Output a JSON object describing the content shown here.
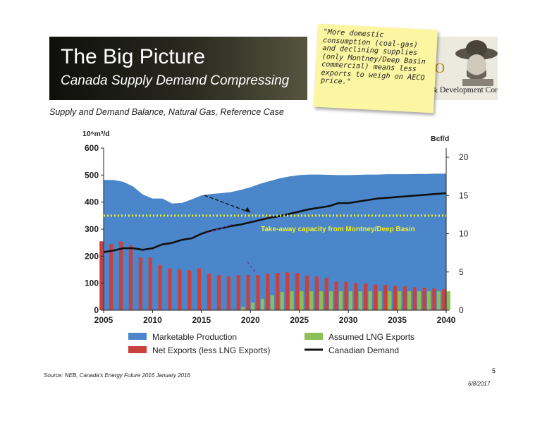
{
  "header": {
    "title": "The Big Picture",
    "subtitle": "Canada Supply Demand Compressing"
  },
  "logo": {
    "mark": "IO",
    "text": "& Development Corp."
  },
  "sticky_note": {
    "text": "\"More domestic consumption (coal-gas) and declining supplies (only Montney/Deep Basin commercial) means less exports to weigh on AECO price.\""
  },
  "footer": {
    "source": "Source: NEB, Canada's Energy Future 2016 January 2016",
    "page_number": "5",
    "date": "6/8/2017"
  },
  "colors": {
    "production": "#4a86c9",
    "net_exports": "#c9403f",
    "lng_exports": "#8cbf57",
    "demand": "#111111",
    "capacity_line": "#f1ef1c",
    "annotation": "#f5ef1c"
  },
  "chart_data": {
    "type": "area",
    "title": "Supply and Demand Balance, Natural Gas, Reference Case",
    "y_left_label": "10⁶m³/d",
    "y_right_label": "Bcf/d",
    "xlim": [
      2005,
      2040
    ],
    "ylim": [
      0,
      600
    ],
    "y2lim": [
      0,
      21.2
    ],
    "x_ticks": [
      2005,
      2010,
      2015,
      2020,
      2025,
      2030,
      2035,
      2040
    ],
    "y_ticks": [
      0,
      100,
      200,
      300,
      400,
      500,
      600
    ],
    "y2_ticks": [
      0,
      5,
      10,
      15,
      20
    ],
    "grid": false,
    "legend_position": "bottom",
    "years": [
      2005,
      2006,
      2007,
      2008,
      2009,
      2010,
      2011,
      2012,
      2013,
      2014,
      2015,
      2016,
      2017,
      2018,
      2019,
      2020,
      2021,
      2022,
      2023,
      2024,
      2025,
      2026,
      2027,
      2028,
      2029,
      2030,
      2031,
      2032,
      2033,
      2034,
      2035,
      2036,
      2037,
      2038,
      2039,
      2040
    ],
    "series": [
      {
        "name": "Marketable Production",
        "kind": "area",
        "values": [
          482,
          482,
          475,
          458,
          428,
          413,
          413,
          395,
          397,
          410,
          425,
          430,
          433,
          437,
          445,
          455,
          468,
          478,
          488,
          495,
          500,
          502,
          502,
          501,
          500,
          500,
          501,
          502,
          502,
          503,
          503,
          503,
          504,
          504,
          505,
          505
        ]
      },
      {
        "name": "Net Exports (less LNG Exports)",
        "kind": "bar",
        "values": [
          255,
          245,
          255,
          240,
          195,
          195,
          168,
          155,
          150,
          148,
          155,
          135,
          130,
          125,
          130,
          130,
          130,
          135,
          138,
          140,
          138,
          128,
          125,
          120,
          105,
          105,
          100,
          98,
          95,
          93,
          90,
          88,
          85,
          83,
          80,
          78
        ]
      },
      {
        "name": "Assumed LNG Exports",
        "kind": "bar",
        "values": [
          0,
          0,
          0,
          0,
          0,
          0,
          0,
          0,
          0,
          0,
          0,
          0,
          0,
          0,
          12,
          28,
          42,
          55,
          68,
          70,
          70,
          70,
          70,
          70,
          70,
          70,
          70,
          70,
          70,
          70,
          70,
          70,
          70,
          70,
          70,
          70
        ]
      },
      {
        "name": "Canadian Demand",
        "kind": "line",
        "axis": "right",
        "values": [
          7.6,
          7.8,
          8.1,
          8.1,
          7.9,
          8.1,
          8.6,
          8.8,
          9.2,
          9.4,
          10.0,
          10.4,
          10.7,
          11.0,
          11.2,
          11.5,
          11.8,
          12.1,
          12.3,
          12.6,
          12.9,
          13.2,
          13.4,
          13.6,
          14.0,
          14.0,
          14.2,
          14.4,
          14.6,
          14.7,
          14.8,
          14.9,
          15.0,
          15.1,
          15.2,
          15.3
        ]
      }
    ],
    "capacity": {
      "label": "Take-away capacity from Montney/Deep Basin",
      "value": 350
    }
  }
}
